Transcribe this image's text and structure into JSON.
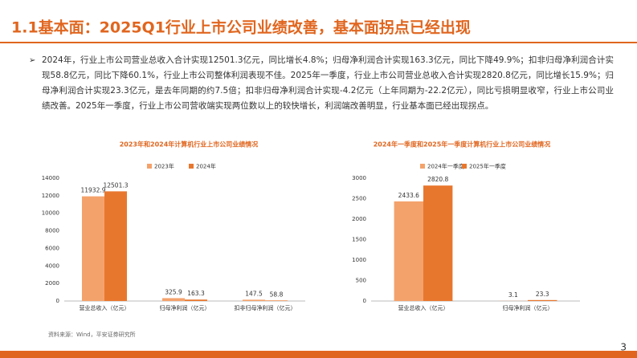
{
  "header": {
    "title": "1.1基本面：2025Q1行业上市公司业绩改善，基本面拐点已经出现"
  },
  "bullet": {
    "text": "2024年，行业上市公司营业总收入合计实现12501.3亿元，同比增长4.8%；归母净利润合计实现163.3亿元，同比下降49.9%；扣非归母净利润合计实现58.8亿元，同比下降60.1%，行业上市公司整体利润表现不佳。2025年一季度，行业上市公司营业总收入合计实现2820.8亿元，同比增长15.9%；归母净利润合计实现23.3亿元，是去年同期的约7.5倍；扣非归母净利润合计实现-4.2亿元（上年同期为-22.2亿元），同比亏损明显收窄，行业上市公司业绩改善。2025年一季度，行业上市公司营收端实现两位数以上的较快增长，利润端改善明显，行业基本面已经出现拐点。"
  },
  "chart_data": [
    {
      "type": "bar",
      "title": "2023年和2024年计算机行业上市公司业绩情况",
      "categories": [
        "营业总收入（亿元）",
        "归母净利润（亿元）",
        "扣非归母净利润（亿元）"
      ],
      "series": [
        {
          "name": "2023年",
          "color": "#f4a26b",
          "values": [
            11932.9,
            325.9,
            147.5
          ]
        },
        {
          "name": "2024年",
          "color": "#e8772e",
          "values": [
            12501.3,
            163.3,
            58.8
          ]
        }
      ],
      "ylim": [
        0,
        14000
      ],
      "yticks": [
        0,
        2000,
        4000,
        6000,
        8000,
        10000,
        12000,
        14000
      ]
    },
    {
      "type": "bar",
      "title": "2024年一季度和2025年一季度计算机行业上市公司业绩情况",
      "categories": [
        "营业总收入（亿元）",
        "归母净利润（亿元）"
      ],
      "series": [
        {
          "name": "2024年一季度",
          "color": "#f4a26b",
          "values": [
            2433.6,
            3.1
          ]
        },
        {
          "name": "2025年一季度",
          "color": "#e8772e",
          "values": [
            2820.8,
            23.3
          ]
        }
      ],
      "ylim": [
        0,
        3000
      ],
      "yticks": [
        0,
        500,
        1000,
        1500,
        2000,
        2500,
        3000
      ]
    }
  ],
  "footer": {
    "source": "资料来源：Wind，平安证券研究所",
    "page": "3"
  }
}
